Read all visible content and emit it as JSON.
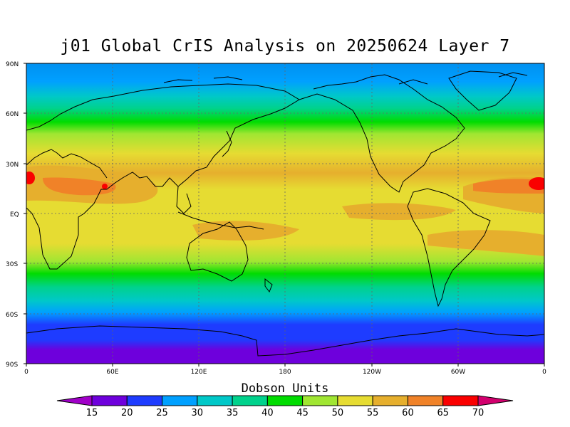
{
  "title": "j01 Global CrIS Analysis on 20250624 Layer 7",
  "units": "Dobson Units",
  "lat_labels": [
    "90N",
    "60N",
    "30N",
    "EQ",
    "30S",
    "60S",
    "90S"
  ],
  "lon_labels": [
    "0",
    "60E",
    "120E",
    "180",
    "120W",
    "60W",
    "0"
  ],
  "colorbar": {
    "levels": [
      "15",
      "20",
      "25",
      "30",
      "35",
      "40",
      "45",
      "50",
      "55",
      "60",
      "65",
      "70"
    ],
    "colors": [
      "#a000c8",
      "#6e00dc",
      "#1e3cff",
      "#00a0ff",
      "#00c8c8",
      "#00d28c",
      "#00dc00",
      "#a0e632",
      "#e6dc32",
      "#e6af2d",
      "#f08228",
      "#fa0000",
      "#d2006e"
    ]
  }
}
